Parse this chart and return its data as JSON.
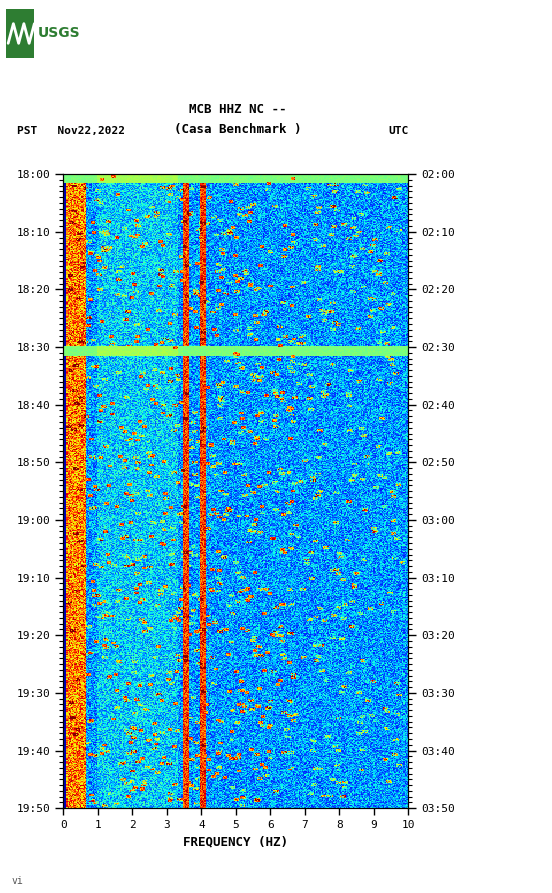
{
  "title_line1": "MCB HHZ NC --",
  "title_line2": "(Casa Benchmark )",
  "left_label": "PST   Nov22,2022",
  "right_label": "UTC",
  "xlabel": "FREQUENCY (HZ)",
  "freq_ticks": [
    0,
    1,
    2,
    3,
    4,
    5,
    6,
    7,
    8,
    9,
    10
  ],
  "pst_ticks": [
    "18:00",
    "18:10",
    "18:20",
    "18:30",
    "18:40",
    "18:50",
    "19:00",
    "19:10",
    "19:20",
    "19:30",
    "19:40",
    "19:50"
  ],
  "utc_ticks": [
    "02:00",
    "02:10",
    "02:20",
    "02:30",
    "02:40",
    "02:50",
    "03:00",
    "03:10",
    "03:20",
    "03:30",
    "03:40",
    "03:50"
  ],
  "n_minutes": 110,
  "fig_width": 5.52,
  "fig_height": 8.93,
  "dpi": 100
}
